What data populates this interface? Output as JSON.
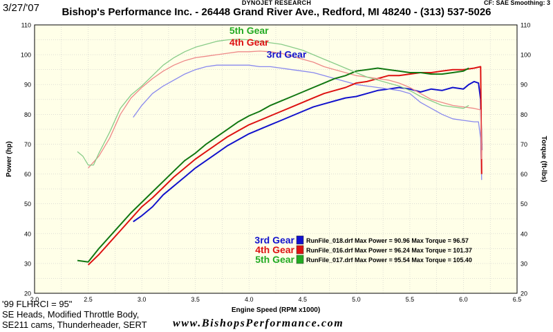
{
  "header": {
    "date": "3/27/'07",
    "dynojet": "DYNOJET RESEARCH",
    "shop": "Bishop's Performance Inc. - 26448 Grand River Ave., Redford, MI  48240 - (313) 537-5026",
    "cf_info": "CF: SAE  Smoothing: 3"
  },
  "notes": {
    "line1": "'99 FLHRCI  = 95\"",
    "line2": "SE Heads, Modified Throttle Body,",
    "line3": "SE211 cams, Thunderheader, SERT"
  },
  "website": "www.BishopsPerformance.com",
  "chart_data": {
    "type": "line",
    "xlabel": "Engine Speed (RPM x1000)",
    "ylabel_left": "Power (hp)",
    "ylabel_right": "Torque (ft-lbs)",
    "xlim": [
      2.0,
      6.5
    ],
    "ylim_left": [
      20,
      110
    ],
    "ylim_right": [
      20,
      110
    ],
    "x_ticks": [
      "2.0",
      "2.5",
      "3.0",
      "3.5",
      "4.0",
      "4.5",
      "5.0",
      "5.5",
      "6.0",
      "6.5"
    ],
    "y_ticks": [
      "20",
      "30",
      "40",
      "50",
      "60",
      "70",
      "80",
      "90",
      "100",
      "110"
    ],
    "grid": true,
    "background": "#ffffe8",
    "gear_labels": [
      {
        "text": "5th Gear",
        "color": "#22aa22",
        "x": 4.0,
        "y": 107
      },
      {
        "text": "4th Gear",
        "color": "#dd1111",
        "x": 4.0,
        "y": 103
      },
      {
        "text": "3rd Gear",
        "color": "#1111cc",
        "x": 4.35,
        "y": 99
      }
    ],
    "legend": {
      "position": "bottom-right",
      "entries": [
        {
          "gear": "3rd Gear",
          "color": "#1111cc",
          "text": "RunFile_018.drf Max Power = 90.96 Max Torque = 96.57"
        },
        {
          "gear": "4th Gear",
          "color": "#dd1111",
          "text": "RunFile_016.drf Max Power = 96.24 Max Torque = 101.37"
        },
        {
          "gear": "5th Gear",
          "color": "#22aa22",
          "text": "RunFile_017.drf Max Power = 95.54 Max Torque = 105.40"
        }
      ]
    },
    "series": [
      {
        "name": "3rd Gear Power",
        "color": "#1111cc",
        "kind": "power",
        "x": [
          2.92,
          3.0,
          3.1,
          3.2,
          3.3,
          3.4,
          3.5,
          3.6,
          3.7,
          3.8,
          3.9,
          4.0,
          4.1,
          4.2,
          4.3,
          4.4,
          4.5,
          4.6,
          4.7,
          4.8,
          4.9,
          5.0,
          5.1,
          5.2,
          5.3,
          5.4,
          5.5,
          5.6,
          5.7,
          5.8,
          5.9,
          6.0,
          6.05,
          6.1,
          6.14,
          6.16,
          6.17
        ],
        "y": [
          44,
          46,
          49,
          53,
          56,
          59,
          62,
          64.5,
          67,
          69.5,
          71.5,
          73.5,
          75,
          76.5,
          78,
          79.5,
          81,
          82.5,
          83.5,
          84.5,
          85.5,
          86,
          87,
          88,
          88.5,
          89,
          88.5,
          87.5,
          88.5,
          88,
          89,
          88.5,
          90,
          91,
          90.5,
          85,
          68
        ]
      },
      {
        "name": "3rd Gear Torque",
        "color": "#8888ee",
        "kind": "torque",
        "x": [
          2.92,
          3.0,
          3.1,
          3.2,
          3.3,
          3.4,
          3.5,
          3.6,
          3.7,
          3.8,
          3.9,
          4.0,
          4.1,
          4.2,
          4.3,
          4.4,
          4.5,
          4.6,
          4.7,
          4.8,
          4.9,
          5.0,
          5.1,
          5.2,
          5.3,
          5.4,
          5.5,
          5.6,
          5.7,
          5.8,
          5.9,
          6.0,
          6.1,
          6.14,
          6.16,
          6.17
        ],
        "y": [
          79,
          83,
          87,
          89.5,
          91.5,
          93.5,
          95,
          96,
          96.5,
          96.5,
          96.5,
          96.5,
          96,
          96,
          95.5,
          95,
          94.5,
          94,
          93,
          92,
          91,
          90,
          89.5,
          89,
          88.5,
          88,
          87,
          84,
          82,
          80,
          78.5,
          78,
          77.5,
          77.5,
          72,
          58
        ]
      },
      {
        "name": "4th Gear Power",
        "color": "#dd1111",
        "kind": "power",
        "x": [
          2.5,
          2.6,
          2.7,
          2.8,
          2.9,
          3.0,
          3.1,
          3.2,
          3.3,
          3.4,
          3.5,
          3.6,
          3.7,
          3.8,
          3.9,
          4.0,
          4.1,
          4.2,
          4.3,
          4.4,
          4.5,
          4.6,
          4.7,
          4.8,
          4.9,
          5.0,
          5.1,
          5.2,
          5.3,
          5.4,
          5.5,
          5.6,
          5.7,
          5.8,
          5.9,
          6.0,
          6.1,
          6.16,
          6.17
        ],
        "y": [
          29.5,
          33,
          37,
          41,
          45,
          49,
          52,
          55.5,
          59,
          62,
          65,
          67.5,
          70,
          72.5,
          74.5,
          76.5,
          78,
          79.5,
          81,
          82.5,
          84,
          85.5,
          87,
          88,
          89,
          90.5,
          91,
          92,
          93,
          93,
          93.5,
          94,
          94,
          94.5,
          95,
          95,
          95.5,
          96,
          60
        ]
      },
      {
        "name": "4th Gear Torque",
        "color": "#ee8888",
        "kind": "torque",
        "x": [
          2.5,
          2.6,
          2.7,
          2.8,
          2.9,
          3.0,
          3.1,
          3.2,
          3.3,
          3.4,
          3.5,
          3.6,
          3.7,
          3.8,
          3.9,
          4.0,
          4.1,
          4.2,
          4.3,
          4.4,
          4.5,
          4.6,
          4.7,
          4.8,
          4.9,
          5.0,
          5.1,
          5.2,
          5.3,
          5.4,
          5.5,
          5.6,
          5.7,
          5.8,
          5.9,
          6.0,
          6.1,
          6.16,
          6.17
        ],
        "y": [
          62,
          66,
          72,
          80,
          85.5,
          89,
          92,
          94.5,
          96.5,
          98,
          99,
          99.5,
          100,
          100.5,
          101,
          101,
          101.2,
          101,
          100.5,
          99.5,
          98.5,
          97.5,
          96,
          95,
          94,
          93,
          92.5,
          92,
          91.5,
          90.5,
          89,
          87,
          85,
          84,
          83,
          82.5,
          82,
          81.5,
          65
        ]
      },
      {
        "name": "5th Gear Power",
        "color": "#117711",
        "kind": "power",
        "x": [
          2.4,
          2.5,
          2.6,
          2.7,
          2.8,
          2.9,
          3.0,
          3.1,
          3.2,
          3.3,
          3.4,
          3.5,
          3.6,
          3.7,
          3.8,
          3.9,
          4.0,
          4.1,
          4.2,
          4.3,
          4.4,
          4.5,
          4.6,
          4.7,
          4.8,
          4.9,
          5.0,
          5.1,
          5.2,
          5.3,
          5.4,
          5.5,
          5.6,
          5.7,
          5.8,
          5.9,
          6.0,
          6.05
        ],
        "y": [
          31,
          30.5,
          35,
          39,
          43,
          47,
          50.5,
          54,
          57.5,
          61,
          64.5,
          67,
          70,
          72.5,
          75,
          77.5,
          79.5,
          81,
          83,
          84.5,
          86,
          87.5,
          89,
          90.5,
          92,
          93,
          94.5,
          95,
          95.5,
          95,
          94.5,
          94,
          94,
          93.5,
          93.5,
          94,
          94.5,
          95.5
        ]
      },
      {
        "name": "5th Gear Torque",
        "color": "#88cc88",
        "kind": "torque",
        "x": [
          2.4,
          2.45,
          2.5,
          2.55,
          2.6,
          2.7,
          2.8,
          2.9,
          3.0,
          3.1,
          3.2,
          3.3,
          3.4,
          3.5,
          3.6,
          3.7,
          3.8,
          3.9,
          4.0,
          4.1,
          4.2,
          4.3,
          4.4,
          4.5,
          4.6,
          4.7,
          4.8,
          4.9,
          5.0,
          5.1,
          5.2,
          5.3,
          5.4,
          5.5,
          5.6,
          5.7,
          5.8,
          5.9,
          6.0,
          6.05
        ],
        "y": [
          67.5,
          66,
          63,
          63,
          67,
          74,
          82,
          86.5,
          89.5,
          93,
          96.5,
          99,
          101,
          102.5,
          103.5,
          104.5,
          105,
          105.2,
          105,
          104.5,
          104,
          103.5,
          102.5,
          101.5,
          100,
          98.5,
          97,
          95.5,
          94,
          92.5,
          91.5,
          90.5,
          89.5,
          88,
          86,
          84.5,
          83,
          82.5,
          82,
          83
        ]
      }
    ]
  }
}
